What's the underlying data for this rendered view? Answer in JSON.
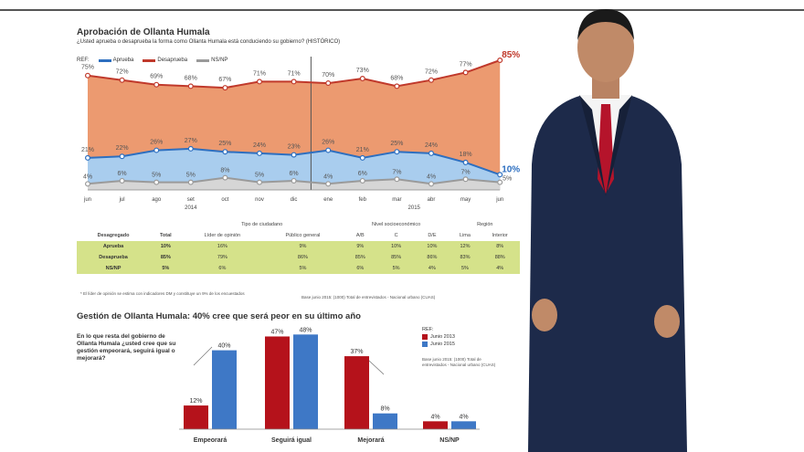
{
  "colors": {
    "aprueba": "#2d6fc0",
    "desaprueba": "#c0392b",
    "ns": "#9a9a9a",
    "desaprueba_fill": "#ec9a70",
    "aprueba_fill": "#a9cdee",
    "ns_fill": "#d6d6d6",
    "table_green": "#d5e28a",
    "bar_2013": "#b5121b",
    "bar_2015": "#3e78c6",
    "suit": "#1d2a4a",
    "tie": "#b5142b"
  },
  "chart_data": [
    {
      "type": "area",
      "title": "Aprobación de Ollanta Humala",
      "subtitle": "¿Usted aprueba o desaprueba la forma como Ollanta Humala está conduciendo su gobierno? (HISTÓRICO)",
      "legend_prefix": "REF:",
      "legend": "top-left",
      "categories": [
        "jun",
        "jul",
        "ago",
        "set",
        "oct",
        "nov",
        "dic",
        "ene",
        "feb",
        "mar",
        "abr",
        "may",
        "jun"
      ],
      "year_labels": [
        "2014",
        "2015"
      ],
      "series": [
        {
          "name": "Desaprueba",
          "values": [
            75,
            72,
            69,
            68,
            67,
            71,
            71,
            70,
            73,
            68,
            72,
            77,
            85
          ],
          "labels": [
            "75%",
            "72%",
            "69%",
            "68%",
            "67%",
            "71%",
            "71%",
            "70%",
            "73%",
            "68%",
            "72%",
            "77%",
            "85%"
          ]
        },
        {
          "name": "Aprueba",
          "values": [
            21,
            22,
            26,
            27,
            25,
            24,
            23,
            26,
            21,
            25,
            24,
            18,
            10
          ],
          "labels": [
            "21%",
            "22%",
            "26%",
            "27%",
            "25%",
            "24%",
            "23%",
            "26%",
            "21%",
            "25%",
            "24%",
            "18%",
            "10%"
          ]
        },
        {
          "name": "NS/NP",
          "values": [
            4,
            6,
            5,
            5,
            8,
            5,
            6,
            4,
            6,
            7,
            4,
            7,
            5
          ],
          "labels": [
            "4%",
            "6%",
            "5%",
            "5%",
            "8%",
            "5%",
            "6%",
            "4%",
            "6%",
            "7%",
            "4%",
            "7%",
            "5%"
          ]
        }
      ]
    },
    {
      "type": "table",
      "header_groups": [
        "Tipo de ciudadano",
        "Nivel socioeconómico",
        "Región"
      ],
      "headers": [
        "Desagregado",
        "Total",
        "Líder de opinión",
        "Público general",
        "A/B",
        "C",
        "D/E",
        "Lima",
        "Interior"
      ],
      "rows": [
        [
          "Aprueba",
          "10%",
          "16%",
          "9%",
          "9%",
          "10%",
          "10%",
          "12%",
          "8%"
        ],
        [
          "Desaprueba",
          "85%",
          "79%",
          "86%",
          "85%",
          "85%",
          "86%",
          "83%",
          "88%"
        ],
        [
          "NS/NP",
          "5%",
          "6%",
          "5%",
          "6%",
          "5%",
          "4%",
          "5%",
          "4%"
        ]
      ],
      "note": "* El líder de opinión se estima con indicadores DM y constituye un 9% de los encuestados",
      "source": "Base junio 2015: (1000) Total de entrevistados - Nacional urbano (CUAS)"
    },
    {
      "type": "bar",
      "title": "Gestión de Ollanta Humala: 40% cree que será peor en su último año",
      "question": "En lo que resta del gobierno de Ollanta Humala ¿usted cree que su gestión empeorará, seguirá igual o mejorará?",
      "legend_prefix": "REF:",
      "categories": [
        "Empeorará",
        "Seguirá igual",
        "Mejorará",
        "NS/NP"
      ],
      "series": [
        {
          "name": "Junio 2013",
          "values": [
            12,
            47,
            37,
            4
          ],
          "labels": [
            "12%",
            "47%",
            "37%",
            "4%"
          ]
        },
        {
          "name": "Junio 2015",
          "values": [
            40,
            48,
            8,
            4
          ],
          "labels": [
            "40%",
            "48%",
            "8%",
            "4%"
          ]
        }
      ],
      "note": "Base junio 2015: (1000) Total de entrevistados - Nacional urbano (CUAS)"
    }
  ]
}
